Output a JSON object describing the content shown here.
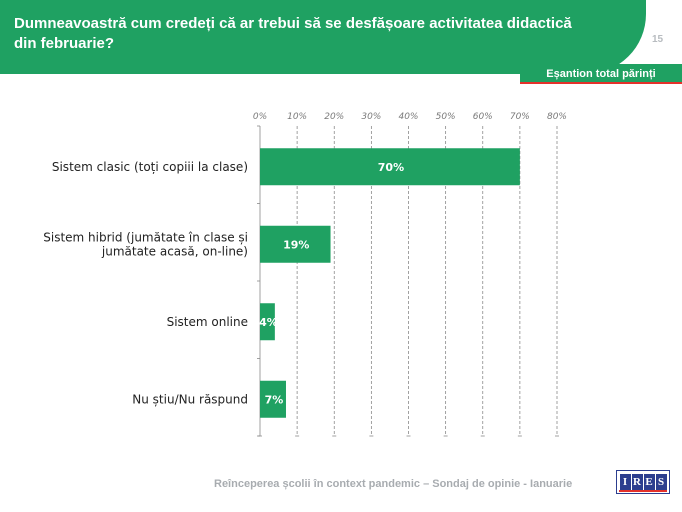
{
  "header": {
    "title": "Dumneavoastră cum credeți că ar trebui să se desfășoare activitatea didactică din februarie?",
    "page_number": "15"
  },
  "sample_badge": "Eșantion total părinți",
  "footer": {
    "text": "Reînceperea școlii în context pandemic – Sondaj de opinie - Ianuarie",
    "logo_letters": [
      "I",
      "R",
      "E",
      "S"
    ]
  },
  "colors": {
    "accent": "#1fa162",
    "bar": "#1fa162",
    "logo": "#2c3e8f",
    "logo_accent": "#e4312b"
  },
  "chart_data": {
    "type": "bar",
    "orientation": "horizontal",
    "categories": [
      "Sistem clasic (toți copiii la clase)",
      "Sistem hibrid (jumătate în clase și jumătate acasă, on-line)",
      "Sistem online",
      "Nu știu/Nu răspund"
    ],
    "category_lines": [
      [
        "Sistem clasic (toți copiii la clase)"
      ],
      [
        "Sistem hibrid (jumătate în clase și",
        "jumătate acasă, on-line)"
      ],
      [
        "Sistem online"
      ],
      [
        "Nu știu/Nu răspund"
      ]
    ],
    "values": [
      70,
      19,
      4,
      7
    ],
    "data_labels": [
      "70%",
      "19%",
      "4%",
      "7%"
    ],
    "xlim": [
      0,
      80
    ],
    "xticks": [
      0,
      10,
      20,
      30,
      40,
      50,
      60,
      70,
      80
    ],
    "xtick_labels": [
      "0%",
      "10%",
      "20%",
      "30%",
      "40%",
      "50%",
      "60%",
      "70%",
      "80%"
    ],
    "x_axis_position": "top",
    "grid": "vertical dashed",
    "legend": "none"
  }
}
